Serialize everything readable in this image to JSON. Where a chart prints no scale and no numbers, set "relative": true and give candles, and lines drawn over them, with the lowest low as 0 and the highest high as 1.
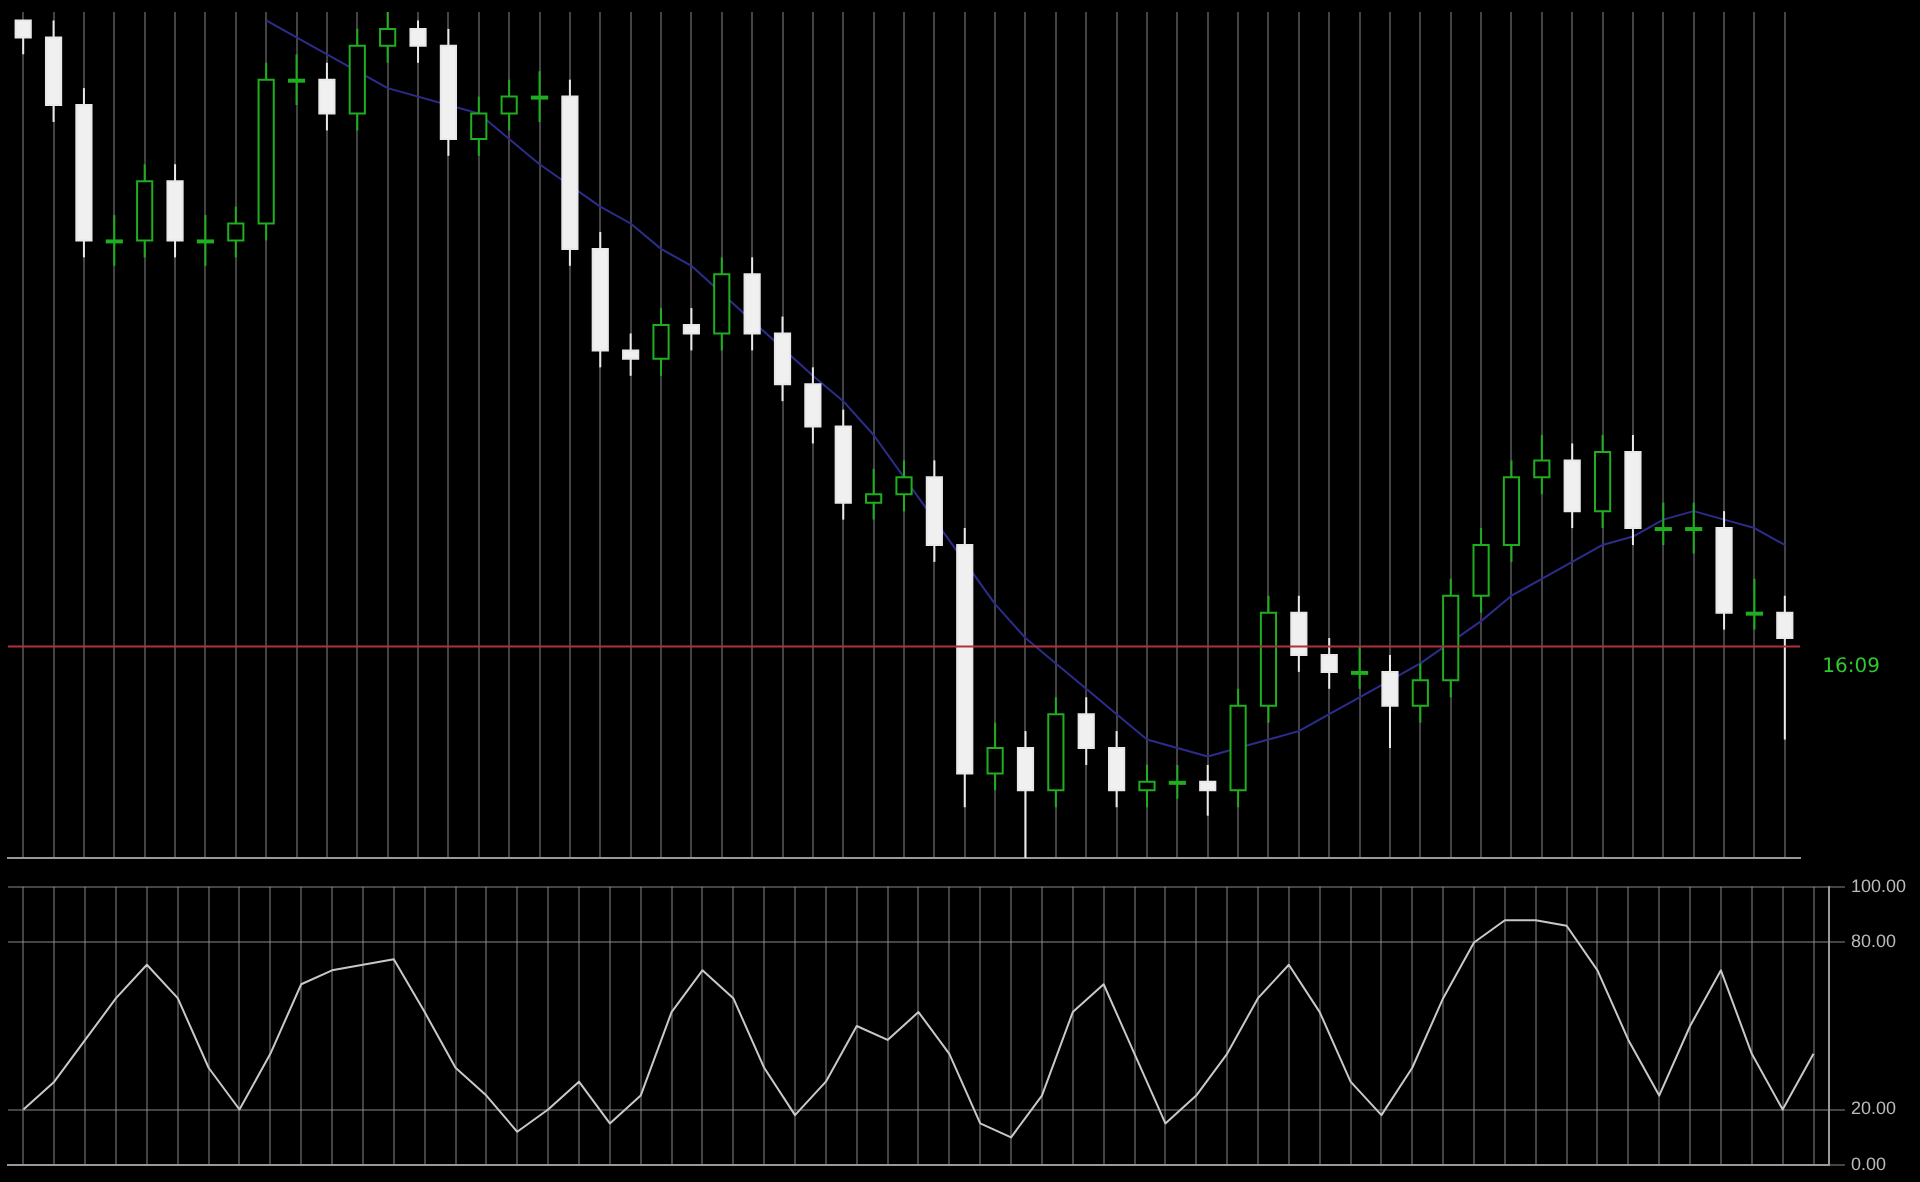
{
  "chart_data": [
    {
      "type": "candlestick",
      "relative": true,
      "grid": "x",
      "categories": [
        null,
        null,
        null,
        null,
        null,
        null,
        null,
        null,
        null,
        null,
        null,
        null,
        null,
        null,
        null,
        null,
        null,
        null,
        null,
        null,
        null,
        null,
        null,
        null,
        null,
        null,
        null,
        null,
        null,
        null,
        null,
        null,
        null,
        null,
        null,
        null,
        null,
        null,
        null,
        null,
        null,
        null,
        null,
        null,
        null,
        null,
        null,
        null,
        null,
        null,
        null,
        null,
        null,
        null,
        null,
        null,
        null,
        null,
        null
      ],
      "ohlc": [
        [
          0.99,
          0.99,
          0.95,
          0.97
        ],
        [
          0.97,
          0.99,
          0.87,
          0.89
        ],
        [
          0.89,
          0.91,
          0.71,
          0.73
        ],
        [
          0.73,
          0.76,
          0.7,
          0.73
        ],
        [
          0.73,
          0.82,
          0.71,
          0.8
        ],
        [
          0.8,
          0.82,
          0.71,
          0.73
        ],
        [
          0.73,
          0.76,
          0.7,
          0.73
        ],
        [
          0.73,
          0.77,
          0.71,
          0.75
        ],
        [
          0.75,
          0.94,
          0.73,
          0.92
        ],
        [
          0.92,
          0.95,
          0.89,
          0.92
        ],
        [
          0.92,
          0.94,
          0.86,
          0.88
        ],
        [
          0.88,
          0.98,
          0.86,
          0.96
        ],
        [
          0.96,
          1.0,
          0.94,
          0.98
        ],
        [
          0.98,
          0.99,
          0.94,
          0.96
        ],
        [
          0.96,
          0.98,
          0.83,
          0.85
        ],
        [
          0.85,
          0.9,
          0.83,
          0.88
        ],
        [
          0.88,
          0.92,
          0.86,
          0.9
        ],
        [
          0.9,
          0.93,
          0.87,
          0.9
        ],
        [
          0.9,
          0.92,
          0.7,
          0.72
        ],
        [
          0.72,
          0.74,
          0.58,
          0.6
        ],
        [
          0.6,
          0.62,
          0.57,
          0.59
        ],
        [
          0.59,
          0.65,
          0.57,
          0.63
        ],
        [
          0.63,
          0.65,
          0.6,
          0.62
        ],
        [
          0.62,
          0.71,
          0.6,
          0.69
        ],
        [
          0.69,
          0.71,
          0.6,
          0.62
        ],
        [
          0.62,
          0.64,
          0.54,
          0.56
        ],
        [
          0.56,
          0.58,
          0.49,
          0.51
        ],
        [
          0.51,
          0.53,
          0.4,
          0.42
        ],
        [
          0.42,
          0.46,
          0.4,
          0.43
        ],
        [
          0.43,
          0.47,
          0.41,
          0.45
        ],
        [
          0.45,
          0.47,
          0.35,
          0.37
        ],
        [
          0.37,
          0.39,
          0.06,
          0.1
        ],
        [
          0.1,
          0.16,
          0.08,
          0.13
        ],
        [
          0.13,
          0.15,
          0.0,
          0.08
        ],
        [
          0.08,
          0.19,
          0.06,
          0.17
        ],
        [
          0.17,
          0.19,
          0.11,
          0.13
        ],
        [
          0.13,
          0.15,
          0.06,
          0.08
        ],
        [
          0.08,
          0.11,
          0.06,
          0.09
        ],
        [
          0.09,
          0.11,
          0.07,
          0.09
        ],
        [
          0.09,
          0.11,
          0.05,
          0.08
        ],
        [
          0.08,
          0.2,
          0.06,
          0.18
        ],
        [
          0.18,
          0.31,
          0.16,
          0.29
        ],
        [
          0.29,
          0.31,
          0.22,
          0.24
        ],
        [
          0.24,
          0.26,
          0.2,
          0.22
        ],
        [
          0.22,
          0.25,
          0.2,
          0.22
        ],
        [
          0.22,
          0.24,
          0.13,
          0.18
        ],
        [
          0.18,
          0.23,
          0.16,
          0.21
        ],
        [
          0.21,
          0.33,
          0.19,
          0.31
        ],
        [
          0.31,
          0.39,
          0.29,
          0.37
        ],
        [
          0.37,
          0.47,
          0.35,
          0.45
        ],
        [
          0.45,
          0.5,
          0.43,
          0.47
        ],
        [
          0.47,
          0.49,
          0.39,
          0.41
        ],
        [
          0.41,
          0.5,
          0.39,
          0.48
        ],
        [
          0.48,
          0.5,
          0.37,
          0.39
        ],
        [
          0.39,
          0.42,
          0.37,
          0.39
        ],
        [
          0.39,
          0.42,
          0.36,
          0.39
        ],
        [
          0.39,
          0.41,
          0.27,
          0.29
        ],
        [
          0.29,
          0.33,
          0.27,
          0.29
        ],
        [
          0.29,
          0.31,
          0.14,
          0.26
        ]
      ],
      "series": [
        {
          "type": "line",
          "color": "#2c2c8c",
          "values": [
            null,
            null,
            null,
            null,
            null,
            null,
            null,
            null,
            0.99,
            0.97,
            0.95,
            null,
            0.91,
            0.9,
            null,
            0.88,
            0.85,
            0.82,
            null,
            0.77,
            0.75,
            0.72,
            0.7,
            null,
            null,
            null,
            0.57,
            0.54,
            0.5,
            0.45,
            null,
            null,
            0.3,
            0.26,
            0.23,
            0.2,
            0.17,
            0.14,
            0.13,
            0.12,
            null,
            0.14,
            0.15,
            0.17,
            0.19,
            null,
            0.23,
            null,
            0.28,
            0.31,
            0.33,
            0.35,
            0.37,
            0.38,
            0.4,
            0.41,
            0.4,
            0.39,
            0.37
          ]
        }
      ],
      "ref_lines": [
        {
          "axis": "y",
          "value": 0.25,
          "color": "#b0303c"
        }
      ],
      "annotations": [
        "16:09"
      ]
    },
    {
      "type": "line",
      "grid": true,
      "tick_labels": "y",
      "marker": "none",
      "categories": [
        null,
        null,
        null,
        null,
        null,
        null,
        null,
        null,
        null,
        null,
        null,
        null,
        null,
        null,
        null,
        null,
        null,
        null,
        null,
        null,
        null,
        null,
        null,
        null,
        null,
        null,
        null,
        null,
        null,
        null,
        null,
        null,
        null,
        null,
        null,
        null,
        null,
        null,
        null,
        null,
        null,
        null,
        null,
        null,
        null,
        null,
        null,
        null,
        null,
        null,
        null,
        null,
        null,
        null,
        null,
        null,
        null,
        null,
        null
      ],
      "ylim": [
        0,
        100
      ],
      "yticks": [
        {
          "value": 0,
          "label": "0.00"
        },
        {
          "value": 20,
          "label": "20.00"
        },
        {
          "value": 80,
          "label": "80.00"
        },
        {
          "value": 100,
          "label": "100.00"
        }
      ],
      "series": [
        {
          "color": "#c8c8c8",
          "values": [
            20,
            30,
            45,
            60,
            72,
            60,
            35,
            20,
            40,
            65,
            70,
            72,
            74,
            55,
            35,
            25,
            12,
            20,
            30,
            15,
            25,
            55,
            70,
            60,
            35,
            18,
            30,
            50,
            45,
            55,
            40,
            15,
            10,
            25,
            55,
            65,
            40,
            15,
            25,
            40,
            60,
            72,
            55,
            30,
            18,
            35,
            60,
            80,
            88,
            88,
            86,
            70,
            45,
            25,
            50,
            70,
            40,
            20,
            40
          ]
        }
      ]
    }
  ]
}
